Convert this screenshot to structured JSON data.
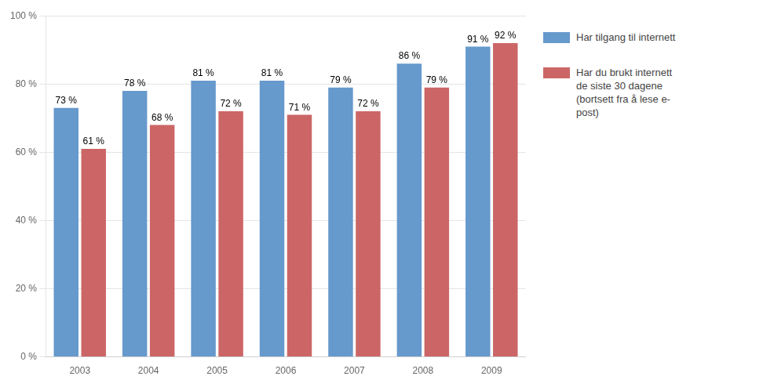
{
  "chart_data": {
    "type": "bar",
    "categories": [
      "2003",
      "2004",
      "2005",
      "2006",
      "2007",
      "2008",
      "2009"
    ],
    "series": [
      {
        "name": "Har tilgang til internett",
        "color": "#6699CC",
        "values": [
          73,
          78,
          81,
          81,
          79,
          86,
          91
        ],
        "value_labels": [
          "73 %",
          "78 %",
          "81 %",
          "81 %",
          "79 %",
          "86 %",
          "91 %"
        ]
      },
      {
        "name": "Har du brukt internett\nde siste 30 dagene\n(bortsett fra å lese e-\npost)",
        "color": "#CC6666",
        "values": [
          61,
          68,
          72,
          71,
          72,
          79,
          92
        ],
        "value_labels": [
          "61 %",
          "68 %",
          "72 %",
          "71 %",
          "72 %",
          "79 %",
          "92 %"
        ]
      }
    ],
    "ylim": [
      0,
      100
    ],
    "yticks": [
      {
        "value": 0,
        "label": "0 %"
      },
      {
        "value": 20,
        "label": "20 %"
      },
      {
        "value": 40,
        "label": "40 %"
      },
      {
        "value": 60,
        "label": "60 %"
      },
      {
        "value": 80,
        "label": "80 %"
      },
      {
        "value": 100,
        "label": "100 %"
      }
    ],
    "grid": true,
    "legend": "right",
    "data_labels": true
  }
}
